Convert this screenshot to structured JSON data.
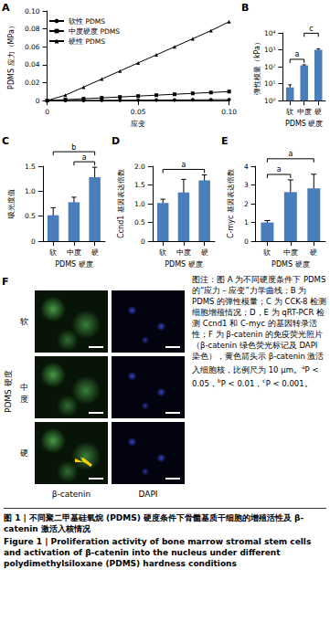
{
  "chart_data": [
    {
      "panel": "A",
      "type": "line",
      "xlabel": "应变",
      "ylabel": "PDMS 应力（MPa）",
      "x": [
        0,
        0.01,
        0.02,
        0.03,
        0.04,
        0.05,
        0.06,
        0.07,
        0.08,
        0.09,
        0.1
      ],
      "xlim": [
        0,
        0.1
      ],
      "xticks": [
        0,
        0.05,
        {
          "value": 0.1,
          "label": "0.10"
        }
      ],
      "ylim": [
        0,
        0.1
      ],
      "yticks": [
        0,
        0.02,
        0.04,
        0.06,
        0.08,
        {
          "value": 0.1,
          "label": "0.10"
        }
      ],
      "legend": "upper left",
      "series": [
        {
          "name": "软性 PDMS",
          "color": "#000000",
          "marker": "circle",
          "values": [
            0,
            0.0001,
            0.0002,
            0.0003,
            0.0004,
            0.0005,
            0.0006,
            0.0007,
            0.0008,
            0.0009,
            0.001
          ]
        },
        {
          "name": "中度硬度 PDMS",
          "color": "#000000",
          "marker": "square",
          "values": [
            0,
            0.001,
            0.002,
            0.003,
            0.004,
            0.005,
            0.006,
            0.007,
            0.008,
            0.009,
            0.01
          ]
        },
        {
          "name": "硬性 PDMS",
          "color": "#000000",
          "marker": "triangle",
          "values": [
            0,
            0.006,
            0.015,
            0.024,
            0.033,
            0.042,
            0.051,
            0.06,
            0.069,
            0.078,
            0.088
          ]
        }
      ]
    },
    {
      "panel": "B",
      "type": "bar",
      "log": "y",
      "xlabel": "PDMS 硬度",
      "ylabel": "弹性模量（kPa）",
      "categories": [
        "软",
        "中度",
        "硬"
      ],
      "values": [
        6,
        120,
        1000
      ],
      "errors": [
        2.5,
        10,
        150
      ],
      "color": "#4a7ebb",
      "ylim": [
        1,
        10000
      ],
      "yticks": [
        {
          "value": 1,
          "label": "10⁰"
        },
        {
          "value": 10,
          "label": "10¹"
        },
        {
          "value": 100,
          "label": "10²"
        },
        {
          "value": 1000,
          "label": "10³"
        },
        {
          "value": 10000,
          "label": "10⁴"
        }
      ],
      "significance": [
        {
          "from": 0,
          "to": 1,
          "label": "a"
        },
        {
          "from": 1,
          "to": 2,
          "label": "c"
        }
      ]
    },
    {
      "panel": "C",
      "type": "bar",
      "xlabel": "PDMS 硬度",
      "ylabel": "吸光度值",
      "categories": [
        "软",
        "中度",
        "硬"
      ],
      "values": [
        0.52,
        0.78,
        1.28
      ],
      "errors": [
        0.15,
        0.1,
        0.2
      ],
      "color": "#4a7ebb",
      "ylim": [
        0,
        1.5
      ],
      "yticks": [
        0,
        0.5,
        {
          "value": 1,
          "label": "1.0"
        },
        1.5
      ],
      "significance": [
        {
          "from": 1,
          "to": 2,
          "label": "a"
        },
        {
          "from": 0,
          "to": 2,
          "label": "b"
        }
      ]
    },
    {
      "panel": "D",
      "type": "bar",
      "xlabel": "PDMS 硬度",
      "ylabel": "Ccnd1 基因表达倍数",
      "categories": [
        "软",
        "中度",
        "硬"
      ],
      "values": [
        1.02,
        1.3,
        1.62
      ],
      "errors": [
        0.1,
        0.35,
        0.15
      ],
      "color": "#4a7ebb",
      "ylim": [
        0,
        2
      ],
      "yticks": [
        0,
        0.5,
        {
          "value": 1,
          "label": "1.0"
        },
        1.5,
        {
          "value": 2,
          "label": "2.0"
        }
      ],
      "significance": [
        {
          "from": 0,
          "to": 2,
          "label": "a"
        }
      ]
    },
    {
      "panel": "E",
      "type": "bar",
      "xlabel": "PDMS 硬度",
      "ylabel": "C-myc 基因表达倍数",
      "categories": [
        "软",
        "中度",
        "硬"
      ],
      "values": [
        1.0,
        2.62,
        2.82
      ],
      "errors": [
        0.1,
        0.65,
        0.75
      ],
      "color": "#4a7ebb",
      "ylim": [
        0,
        4
      ],
      "yticks": [
        0,
        1,
        2,
        3,
        4
      ],
      "significance": [
        {
          "from": 0,
          "to": 1,
          "label": "a"
        },
        {
          "from": 0,
          "to": 2,
          "label": "a"
        }
      ]
    }
  ],
  "panel_f": {
    "panel": "F",
    "ylabel": "PDMS 硬度",
    "rows": [
      "软",
      "中度",
      "硬"
    ],
    "columns": [
      "β-catenin",
      "DAPI"
    ]
  },
  "caption_note": {
    "text": "图注：图 A 为不同硬度条件下 PDMS 的“应力－应变”力学曲线；B 为 PDMS 的弹性模量；C 为 CCK-8 检测细胞增殖情况；D，E 为 qRT-PCR 检测 Ccnd1 和 C-myc 的基因转录活性；F 为 β-catenin 的免疫荧光照片（β-catenin 绿色荧光标记及 DAPI 染色），黄色箭头示 β-catenin 激活入细胞核，比例尺为 10 μm。",
    "significance": [
      {
        "mark": "a",
        "text": "P < 0.05，"
      },
      {
        "mark": "b",
        "text": "P < 0.01，"
      },
      {
        "mark": "c",
        "text": "P < 0.001。"
      }
    ]
  },
  "figure_caption": {
    "zh": "图 1 | 不同聚二甲基硅氧烷 (PDMS) 硬度条件下骨髓基质干细胞的增殖活性及 β-catenin 激活入核情况",
    "en": "Figure 1 | Proliferation activity of bone marrow stromal stem cells and activation of β-catenin into the nucleus under different polydimethylsiloxane (PDMS) hardness conditions"
  }
}
